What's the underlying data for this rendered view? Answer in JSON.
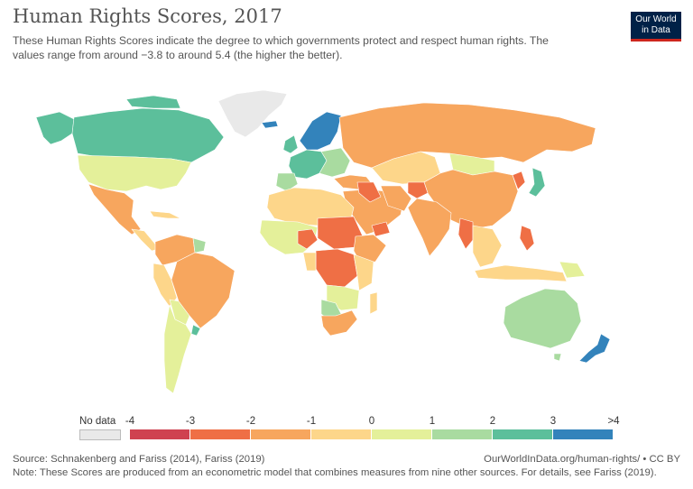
{
  "header": {
    "title": "Human Rights Scores, 2017",
    "subtitle_line1": "These Human Rights Scores indicate the degree to which governments protect and respect human rights. The",
    "subtitle_line2": "values range from around −3.8 to around 5.4 (the higher the better)."
  },
  "logo": {
    "line1": "Our World",
    "line2": "in Data"
  },
  "legend": {
    "no_data_label": "No data",
    "no_data_color": "#e9e9e9",
    "ticks": [
      "-4",
      "-3",
      "-2",
      "-1",
      "0",
      "1",
      "2",
      "3",
      ">4"
    ],
    "bins": [
      {
        "from": -4,
        "to": -3,
        "color": "#cf4250"
      },
      {
        "from": -3,
        "to": -2,
        "color": "#ef6f45"
      },
      {
        "from": -2,
        "to": -1,
        "color": "#f7a65e"
      },
      {
        "from": -1,
        "to": 0,
        "color": "#fdd68a"
      },
      {
        "from": 0,
        "to": 1,
        "color": "#e4f09a"
      },
      {
        "from": 1,
        "to": 2,
        "color": "#a9dba0"
      },
      {
        "from": 2,
        "to": 3,
        "color": "#5cbf9b"
      },
      {
        "from": 3,
        "to": 4,
        "color": "#3383bb"
      }
    ]
  },
  "map": {
    "colors": {
      "nodata": "#e9e9e9",
      "b_m4": "#cf4250",
      "b_m3": "#ef6f45",
      "b_m2": "#f7a65e",
      "b_m1": "#fdd68a",
      "b_0": "#e4f09a",
      "b_1": "#a9dba0",
      "b_2": "#5cbf9b",
      "b_3": "#3383bb"
    }
  },
  "footer": {
    "source": "Source: Schnakenberg and Fariss (2014), Fariss (2019)",
    "note": "Note: These Scores are produced from an econometric model that combines measures from nine other sources. For details, see Fariss (2019).",
    "url": "OurWorldInData.org/human-rights/ • CC BY"
  }
}
